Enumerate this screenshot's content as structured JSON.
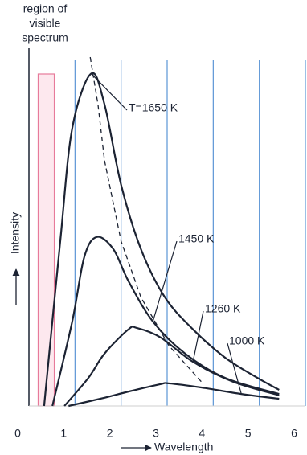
{
  "chart_data": {
    "type": "line",
    "visible_label": [
      "region of",
      "visible",
      "spectrum"
    ],
    "visible_range": [
      0.2,
      0.55
    ],
    "xlabel": "Wavelength",
    "ylabel": "Intensity",
    "xlim": [
      0,
      6
    ],
    "xticks": [
      0,
      1,
      2,
      3,
      4,
      5,
      6
    ],
    "ylim": [
      0,
      110
    ],
    "grid": true,
    "series": [
      {
        "name": "T=1650 K",
        "color": "#1c2333",
        "x": [
          0.33,
          0.68,
          0.94,
          1.35,
          1.64,
          2.0,
          2.43,
          2.95,
          3.56,
          4.26,
          4.96,
          5.43
        ],
        "values": [
          0,
          48.2,
          81.2,
          97.2,
          88.2,
          64.7,
          45.9,
          31.8,
          22.4,
          14.1,
          8.2,
          4.7
        ]
      },
      {
        "name": "1450 K",
        "color": "#1c2333",
        "x": [
          0.51,
          0.94,
          1.2,
          1.47,
          1.83,
          2.16,
          2.69,
          3.39,
          4.26,
          5.43
        ],
        "values": [
          0,
          24.7,
          43.5,
          49.4,
          45.9,
          36.5,
          24.7,
          15.3,
          8.2,
          3.5
        ]
      },
      {
        "name": "1260 K",
        "color": "#1c2333",
        "x": [
          0.77,
          1.29,
          1.64,
          2.16,
          2.34,
          2.86,
          3.56,
          4.43,
          5.43
        ],
        "values": [
          0,
          8.2,
          15.3,
          22.4,
          22.8,
          20,
          12.9,
          7.1,
          3.1
        ]
      },
      {
        "name": "1000 K",
        "color": "#1c2333",
        "x": [
          0.86,
          1.64,
          2.16,
          2.86,
          3.04,
          3.74,
          4.61,
          5.43
        ],
        "values": [
          0,
          2.4,
          4.2,
          6.4,
          6.6,
          5.4,
          3.5,
          2.1
        ]
      }
    ],
    "dashed_curve": {
      "x": [
        1.33,
        1.5,
        1.64,
        2.0,
        2.43,
        3.04,
        3.74
      ],
      "values": [
        102,
        88,
        71.8,
        48.2,
        31.8,
        17.6,
        7.1
      ]
    }
  }
}
